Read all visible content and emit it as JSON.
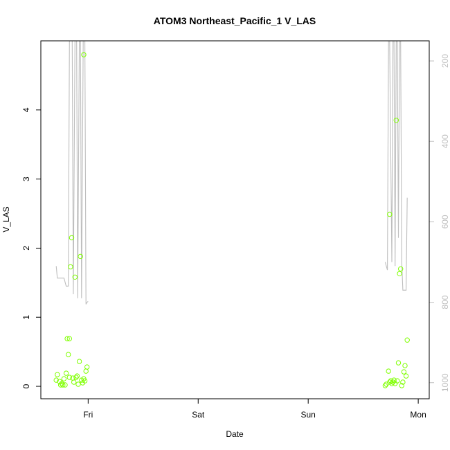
{
  "chart_data": {
    "type": "scatter",
    "title": "ATOM3 Northeast_Pacific_1 V_LAS",
    "xlabel": "Date",
    "ylabel": "V_LAS",
    "x_ticks": [
      "Fri",
      "Sat",
      "Sun",
      "Mon"
    ],
    "x_tick_days": [
      1,
      2,
      3,
      4
    ],
    "xlim": [
      0.57,
      4.1
    ],
    "ylim": [
      -0.18,
      5.0
    ],
    "y_ticks": [
      0,
      1,
      2,
      3,
      4
    ],
    "y2lim": [
      1040,
      150
    ],
    "y2_ticks": [
      200,
      400,
      600,
      800,
      1000
    ],
    "colors": {
      "points": "#7fff00",
      "depth_line": "#bebebe",
      "axis": "#000000"
    },
    "points": [
      [
        0.71,
        0.09
      ],
      [
        0.72,
        0.17
      ],
      [
        0.74,
        0.07
      ],
      [
        0.75,
        0.02
      ],
      [
        0.76,
        0.04
      ],
      [
        0.77,
        0.02
      ],
      [
        0.78,
        0.11
      ],
      [
        0.79,
        0.02
      ],
      [
        0.8,
        0.19
      ],
      [
        0.81,
        0.69
      ],
      [
        0.82,
        0.46
      ],
      [
        0.83,
        0.69
      ],
      [
        0.83,
        0.13
      ],
      [
        0.84,
        1.73
      ],
      [
        0.85,
        2.15
      ],
      [
        0.86,
        0.12
      ],
      [
        0.87,
        0.06
      ],
      [
        0.88,
        1.58
      ],
      [
        0.89,
        0.13
      ],
      [
        0.9,
        0.15
      ],
      [
        0.91,
        0.03
      ],
      [
        0.92,
        0.36
      ],
      [
        0.93,
        1.88
      ],
      [
        0.94,
        0.09
      ],
      [
        0.95,
        0.05
      ],
      [
        0.96,
        4.8
      ],
      [
        0.96,
        0.11
      ],
      [
        0.97,
        0.08
      ],
      [
        0.98,
        0.22
      ],
      [
        0.99,
        0.28
      ],
      [
        3.7,
        0.01
      ],
      [
        3.71,
        0.03
      ],
      [
        3.73,
        0.22
      ],
      [
        3.74,
        2.49
      ],
      [
        3.74,
        0.06
      ],
      [
        3.75,
        0.08
      ],
      [
        3.76,
        0.04
      ],
      [
        3.77,
        0.06
      ],
      [
        3.78,
        0.09
      ],
      [
        3.79,
        0.04
      ],
      [
        3.8,
        3.85
      ],
      [
        3.81,
        0.08
      ],
      [
        3.82,
        0.34
      ],
      [
        3.83,
        1.63
      ],
      [
        3.84,
        1.7
      ],
      [
        3.85,
        0.01
      ],
      [
        3.86,
        0.06
      ],
      [
        3.87,
        0.21
      ],
      [
        3.88,
        0.3
      ],
      [
        3.89,
        0.15
      ],
      [
        3.9,
        0.67
      ]
    ],
    "depth_line": [
      [
        0.71,
        710
      ],
      [
        0.72,
        740
      ],
      [
        0.78,
        740
      ],
      [
        0.79,
        750
      ],
      [
        0.8,
        760
      ],
      [
        0.81,
        760
      ],
      [
        0.82,
        760
      ],
      [
        0.83,
        150
      ],
      [
        0.855,
        150
      ],
      [
        0.865,
        780
      ],
      [
        0.88,
        150
      ],
      [
        0.895,
        150
      ],
      [
        0.905,
        790
      ],
      [
        0.92,
        150
      ],
      [
        0.93,
        150
      ],
      [
        0.94,
        790
      ],
      [
        0.955,
        150
      ],
      [
        0.97,
        150
      ],
      [
        0.98,
        805
      ],
      [
        0.99,
        800
      ],
      [
        1.0,
        798
      ],
      [
        3.7,
        700
      ],
      [
        3.72,
        720
      ],
      [
        3.73,
        150
      ],
      [
        3.74,
        150
      ],
      [
        3.76,
        700
      ],
      [
        3.77,
        150
      ],
      [
        3.78,
        150
      ],
      [
        3.79,
        710
      ],
      [
        3.8,
        150
      ],
      [
        3.81,
        150
      ],
      [
        3.82,
        640
      ],
      [
        3.83,
        150
      ],
      [
        3.84,
        150
      ],
      [
        3.85,
        700
      ],
      [
        3.86,
        770
      ],
      [
        3.87,
        770
      ],
      [
        3.88,
        770
      ],
      [
        3.89,
        770
      ],
      [
        3.9,
        540
      ]
    ]
  }
}
